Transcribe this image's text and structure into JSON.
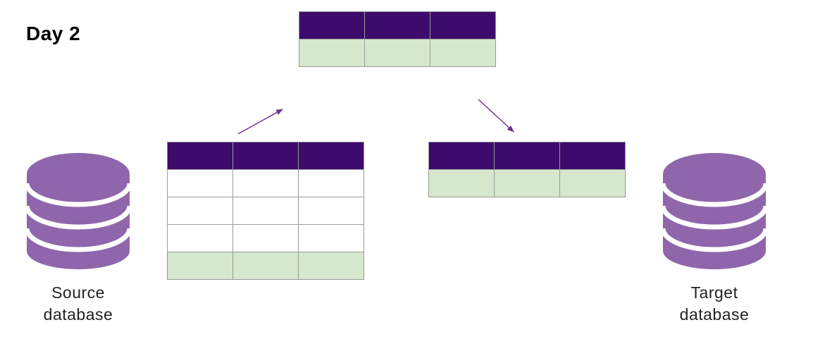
{
  "diagram": {
    "title": "Day 2",
    "source_label_line1": "Source",
    "source_label_line2": "database",
    "target_label_line1": "Target",
    "target_label_line2": "database"
  },
  "colors": {
    "header": "#3d0b6b",
    "total_row": "#d5e7cc",
    "database": "#8f66ab",
    "arrow": "#6b3494"
  },
  "icons": {
    "source": "database-icon",
    "target": "database-icon",
    "arrow_up": "arrow-icon",
    "arrow_down": "arrow-icon"
  }
}
